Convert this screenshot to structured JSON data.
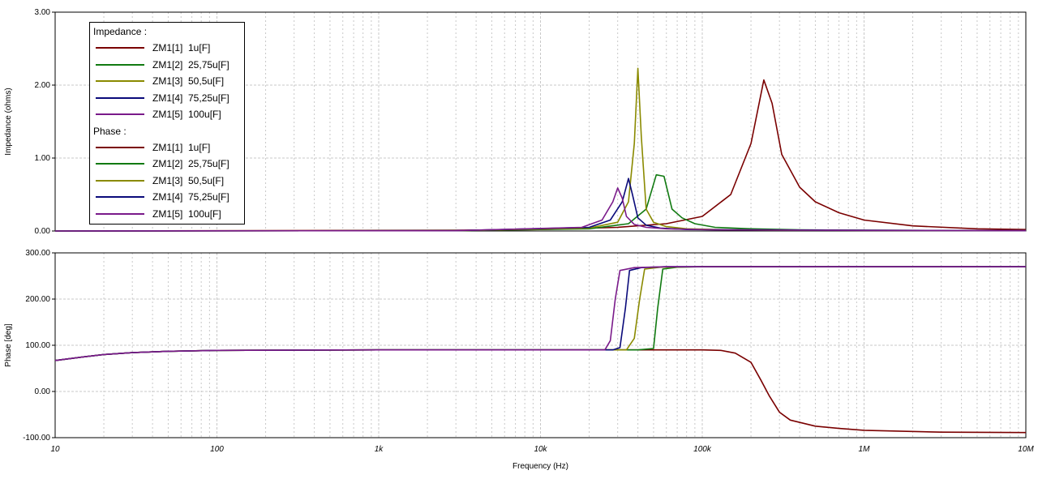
{
  "chart_data": [
    {
      "type": "line",
      "ylabel": "Impedance (ohms)",
      "xlabel": "",
      "xscale": "log",
      "xlim": [
        10,
        10000000
      ],
      "ylim": [
        0,
        3
      ],
      "y_ticks": [
        "3.00",
        "2.00",
        "1.00",
        "0.00"
      ],
      "grid": true,
      "legend_title": "Impedance :",
      "series": [
        {
          "name": "ZM1[1]  1u[F]",
          "color": "#7a0000",
          "points": [
            [
              10,
              0.0
            ],
            [
              3000,
              0.01
            ],
            [
              10000,
              0.02
            ],
            [
              30000,
              0.05
            ],
            [
              60000,
              0.1
            ],
            [
              100000,
              0.2
            ],
            [
              150000,
              0.5
            ],
            [
              200000,
              1.2
            ],
            [
              240000,
              2.07
            ],
            [
              270000,
              1.75
            ],
            [
              310000,
              1.05
            ],
            [
              400000,
              0.6
            ],
            [
              500000,
              0.4
            ],
            [
              700000,
              0.25
            ],
            [
              1000000,
              0.15
            ],
            [
              2000000,
              0.07
            ],
            [
              5000000,
              0.03
            ],
            [
              10000000,
              0.02
            ]
          ]
        },
        {
          "name": "ZM1[2]  25,75u[F]",
          "color": "#117a11",
          "points": [
            [
              10,
              0.0
            ],
            [
              3000,
              0.005
            ],
            [
              20000,
              0.03
            ],
            [
              35000,
              0.1
            ],
            [
              45000,
              0.3
            ],
            [
              52000,
              0.77
            ],
            [
              58000,
              0.75
            ],
            [
              65000,
              0.3
            ],
            [
              75000,
              0.18
            ],
            [
              90000,
              0.1
            ],
            [
              120000,
              0.05
            ],
            [
              200000,
              0.03
            ],
            [
              400000,
              0.015
            ],
            [
              1000000,
              0.01
            ],
            [
              10000000,
              0.005
            ]
          ]
        },
        {
          "name": "ZM1[3]  50,5u[F]",
          "color": "#8a8a00",
          "points": [
            [
              10,
              0.0
            ],
            [
              3000,
              0.005
            ],
            [
              20000,
              0.04
            ],
            [
              30000,
              0.12
            ],
            [
              35000,
              0.4
            ],
            [
              38000,
              1.2
            ],
            [
              40000,
              2.23
            ],
            [
              42000,
              1.3
            ],
            [
              45000,
              0.3
            ],
            [
              50000,
              0.12
            ],
            [
              60000,
              0.06
            ],
            [
              80000,
              0.03
            ],
            [
              150000,
              0.015
            ],
            [
              400000,
              0.01
            ],
            [
              10000000,
              0.005
            ]
          ]
        },
        {
          "name": "ZM1[4]  75,25u[F]",
          "color": "#0a0a7a",
          "points": [
            [
              10,
              0.0
            ],
            [
              3000,
              0.005
            ],
            [
              20000,
              0.05
            ],
            [
              27000,
              0.15
            ],
            [
              32000,
              0.4
            ],
            [
              35000,
              0.72
            ],
            [
              37000,
              0.5
            ],
            [
              40000,
              0.18
            ],
            [
              45000,
              0.08
            ],
            [
              55000,
              0.04
            ],
            [
              80000,
              0.02
            ],
            [
              200000,
              0.015
            ],
            [
              1000000,
              0.01
            ],
            [
              10000000,
              0.005
            ]
          ]
        },
        {
          "name": "ZM1[5]  100u[F]",
          "color": "#7a1a8a",
          "points": [
            [
              10,
              0.0
            ],
            [
              3000,
              0.005
            ],
            [
              18000,
              0.05
            ],
            [
              24000,
              0.15
            ],
            [
              28000,
              0.4
            ],
            [
              30000,
              0.59
            ],
            [
              32000,
              0.45
            ],
            [
              34000,
              0.2
            ],
            [
              38000,
              0.09
            ],
            [
              45000,
              0.05
            ],
            [
              60000,
              0.03
            ],
            [
              120000,
              0.015
            ],
            [
              1000000,
              0.008
            ],
            [
              10000000,
              0.005
            ]
          ]
        }
      ]
    },
    {
      "type": "line",
      "ylabel": "Phase [deg]",
      "xlabel": "Frequency (Hz)",
      "xscale": "log",
      "xlim": [
        10,
        10000000
      ],
      "ylim": [
        -100,
        300
      ],
      "y_ticks": [
        "300.00",
        "200.00",
        "100.00",
        "0.00",
        "-100.00"
      ],
      "x_ticks": [
        "10",
        "100",
        "1k",
        "10k",
        "100k",
        "1M",
        "10M"
      ],
      "grid": true,
      "legend_title": "Phase :",
      "series": [
        {
          "name": "ZM1[1]  1u[F]",
          "color": "#7a0000",
          "points": [
            [
              10,
              67
            ],
            [
              15,
              75
            ],
            [
              20,
              80
            ],
            [
              30,
              84
            ],
            [
              50,
              87
            ],
            [
              100,
              89
            ],
            [
              1000,
              90
            ],
            [
              10000,
              90
            ],
            [
              50000,
              90
            ],
            [
              100000,
              90
            ],
            [
              130000,
              89
            ],
            [
              160000,
              83
            ],
            [
              200000,
              63
            ],
            [
              230000,
              25
            ],
            [
              260000,
              -10
            ],
            [
              300000,
              -45
            ],
            [
              350000,
              -62
            ],
            [
              500000,
              -75
            ],
            [
              700000,
              -80
            ],
            [
              1000000,
              -84
            ],
            [
              3000000,
              -88
            ],
            [
              10000000,
              -89
            ]
          ]
        },
        {
          "name": "ZM1[2]  25,75u[F]",
          "color": "#117a11",
          "points": [
            [
              10,
              67
            ],
            [
              15,
              75
            ],
            [
              20,
              80
            ],
            [
              30,
              84
            ],
            [
              50,
              87
            ],
            [
              100,
              89
            ],
            [
              1000,
              90
            ],
            [
              10000,
              90
            ],
            [
              40000,
              90
            ],
            [
              50000,
              93
            ],
            [
              53000,
              180
            ],
            [
              57000,
              265
            ],
            [
              70000,
              269
            ],
            [
              100000,
              270
            ],
            [
              10000000,
              270
            ]
          ]
        },
        {
          "name": "ZM1[3]  50,5u[F]",
          "color": "#8a8a00",
          "points": [
            [
              10,
              67
            ],
            [
              15,
              75
            ],
            [
              20,
              80
            ],
            [
              30,
              84
            ],
            [
              50,
              87
            ],
            [
              100,
              89
            ],
            [
              1000,
              90
            ],
            [
              10000,
              90
            ],
            [
              34000,
              90
            ],
            [
              38000,
              115
            ],
            [
              41000,
              200
            ],
            [
              44000,
              265
            ],
            [
              55000,
              269
            ],
            [
              100000,
              270
            ],
            [
              10000000,
              270
            ]
          ]
        },
        {
          "name": "ZM1[4]  75,25u[F]",
          "color": "#0a0a7a",
          "points": [
            [
              10,
              67
            ],
            [
              15,
              75
            ],
            [
              20,
              80
            ],
            [
              30,
              84
            ],
            [
              50,
              87
            ],
            [
              100,
              89
            ],
            [
              1000,
              90
            ],
            [
              10000,
              90
            ],
            [
              28000,
              90
            ],
            [
              31000,
              95
            ],
            [
              33500,
              180
            ],
            [
              35500,
              262
            ],
            [
              42000,
              268
            ],
            [
              60000,
              270
            ],
            [
              10000000,
              270
            ]
          ]
        },
        {
          "name": "ZM1[5]  100u[F]",
          "color": "#7a1a8a",
          "points": [
            [
              10,
              67
            ],
            [
              15,
              75
            ],
            [
              20,
              80
            ],
            [
              30,
              84
            ],
            [
              50,
              87
            ],
            [
              100,
              89
            ],
            [
              1000,
              90
            ],
            [
              10000,
              90
            ],
            [
              25000,
              90
            ],
            [
              27000,
              110
            ],
            [
              29000,
              200
            ],
            [
              31000,
              262
            ],
            [
              38000,
              268
            ],
            [
              60000,
              270
            ],
            [
              10000000,
              270
            ]
          ]
        }
      ]
    }
  ]
}
